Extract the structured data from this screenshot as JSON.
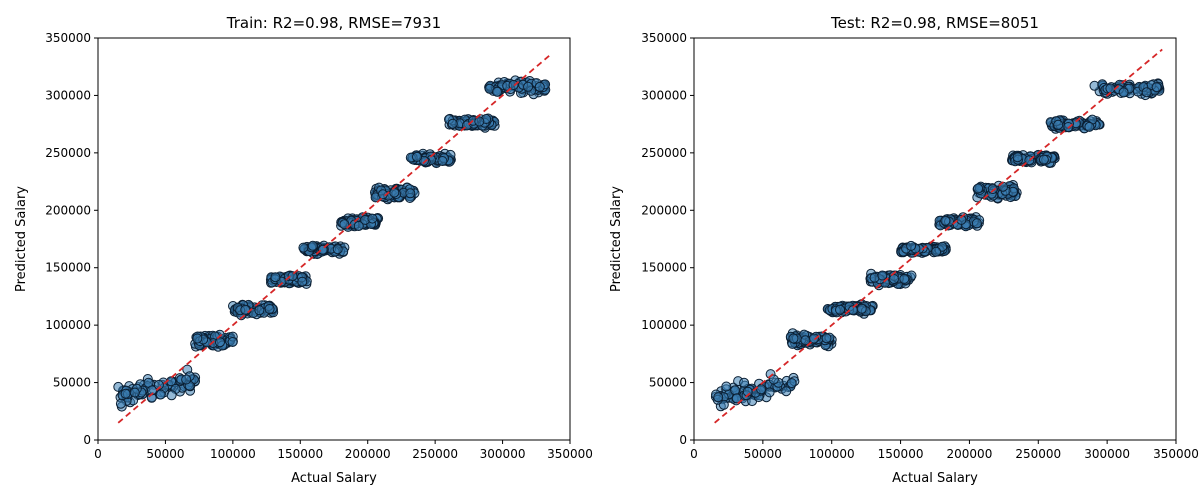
{
  "colors": {
    "point_fill": "#3d7fb5",
    "point_edge": "#0b1f33",
    "ideal_line": "#d62728",
    "axis": "#000000"
  },
  "chart_data": [
    {
      "type": "scatter",
      "title": "Train: R2=0.98, RMSE=7931",
      "xlabel": "Actual Salary",
      "ylabel": "Predicted Salary",
      "xlim": [
        0,
        350000
      ],
      "ylim": [
        0,
        350000
      ],
      "xticks": [
        0,
        50000,
        100000,
        150000,
        200000,
        250000,
        300000,
        350000
      ],
      "yticks": [
        0,
        50000,
        100000,
        150000,
        200000,
        250000,
        300000,
        350000
      ],
      "grid": false,
      "ideal_line": {
        "style": "dashed",
        "x": [
          15000,
          335000
        ],
        "y": [
          15000,
          335000
        ]
      },
      "clusters": [
        {
          "x_range": [
            15000,
            72000
          ],
          "y_center": 45000,
          "y_spread": 14000
        },
        {
          "x_range": [
            72000,
            100000
          ],
          "y_center": 86000,
          "y_spread": 7000
        },
        {
          "x_range": [
            100000,
            130000
          ],
          "y_center": 114000,
          "y_spread": 6000
        },
        {
          "x_range": [
            128000,
            155000
          ],
          "y_center": 140000,
          "y_spread": 6000
        },
        {
          "x_range": [
            152000,
            183000
          ],
          "y_center": 166000,
          "y_spread": 5000
        },
        {
          "x_range": [
            180000,
            208000
          ],
          "y_center": 190000,
          "y_spread": 6000
        },
        {
          "x_range": [
            205000,
            235000
          ],
          "y_center": 215000,
          "y_spread": 7000
        },
        {
          "x_range": [
            230000,
            262000
          ],
          "y_center": 245000,
          "y_spread": 5000
        },
        {
          "x_range": [
            260000,
            295000
          ],
          "y_center": 276000,
          "y_spread": 5000
        },
        {
          "x_range": [
            290000,
            335000
          ],
          "y_center": 307000,
          "y_spread": 7000
        }
      ]
    },
    {
      "type": "scatter",
      "title": "Test: R2=0.98, RMSE=8051",
      "xlabel": "Actual Salary",
      "ylabel": "Predicted Salary",
      "xlim": [
        0,
        350000
      ],
      "ylim": [
        0,
        350000
      ],
      "xticks": [
        0,
        50000,
        100000,
        150000,
        200000,
        250000,
        300000,
        350000
      ],
      "yticks": [
        0,
        50000,
        100000,
        150000,
        200000,
        250000,
        300000,
        350000
      ],
      "grid": false,
      "ideal_line": {
        "style": "dashed",
        "x": [
          15000,
          340000
        ],
        "y": [
          15000,
          340000
        ]
      },
      "clusters": [
        {
          "x_range": [
            15000,
            73000
          ],
          "y_center": 44000,
          "y_spread": 13000
        },
        {
          "x_range": [
            70000,
            100000
          ],
          "y_center": 87000,
          "y_spread": 7000
        },
        {
          "x_range": [
            97000,
            130000
          ],
          "y_center": 114000,
          "y_spread": 5000
        },
        {
          "x_range": [
            128000,
            158000
          ],
          "y_center": 140000,
          "y_spread": 6000
        },
        {
          "x_range": [
            150000,
            183000
          ],
          "y_center": 166000,
          "y_spread": 5000
        },
        {
          "x_range": [
            178000,
            208000
          ],
          "y_center": 190000,
          "y_spread": 5000
        },
        {
          "x_range": [
            205000,
            235000
          ],
          "y_center": 216000,
          "y_spread": 7000
        },
        {
          "x_range": [
            230000,
            262000
          ],
          "y_center": 245000,
          "y_spread": 5000
        },
        {
          "x_range": [
            258000,
            295000
          ],
          "y_center": 275000,
          "y_spread": 5000
        },
        {
          "x_range": [
            290000,
            338000
          ],
          "y_center": 306000,
          "y_spread": 7000
        }
      ]
    }
  ]
}
